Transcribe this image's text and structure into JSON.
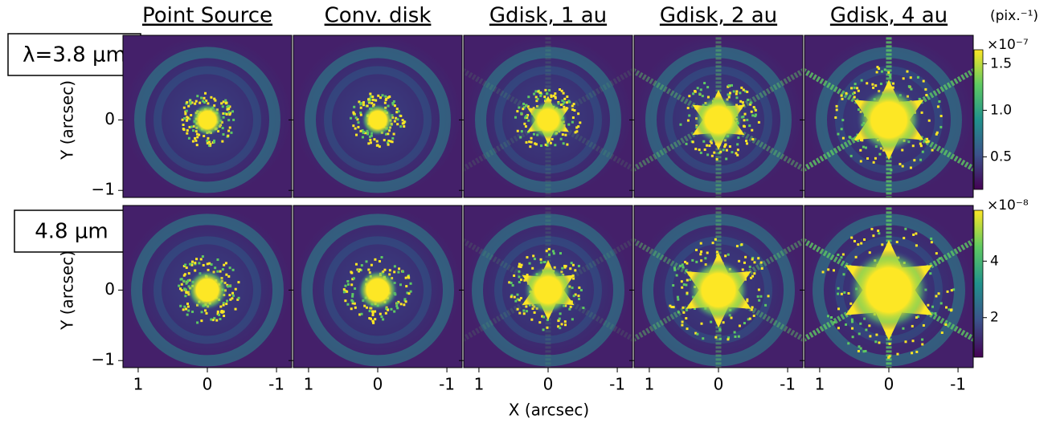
{
  "chart_data": {
    "type": "image-grid",
    "columns": [
      "Point Source",
      "Conv. disk",
      "Gdisk, 1 au",
      "Gdisk, 2 au",
      "Gdisk, 4 au"
    ],
    "rows": [
      "λ=3.8 μm",
      "4.8 μm"
    ],
    "x_label": "X (arcsec)",
    "y_label": "Y (arcsec)",
    "xlim": [
      1.22,
      -1.22
    ],
    "xticks": [
      1,
      0,
      -1
    ],
    "ylim": [
      -1.1,
      1.2
    ],
    "yticks": [
      {
        "value": -1,
        "label": "−1"
      },
      0
    ],
    "colorbar_unit": "(pix.⁻¹)",
    "colorbars": [
      {
        "offset": "×10⁻⁷",
        "lim": [
          0.15,
          1.65
        ],
        "ticks": [
          0.5,
          {
            "value": 1,
            "label": "1.0"
          },
          1.5
        ]
      },
      {
        "offset": "×10⁻⁸",
        "lim": [
          0.6,
          5.8
        ],
        "ticks": [
          2,
          4
        ]
      }
    ]
  }
}
